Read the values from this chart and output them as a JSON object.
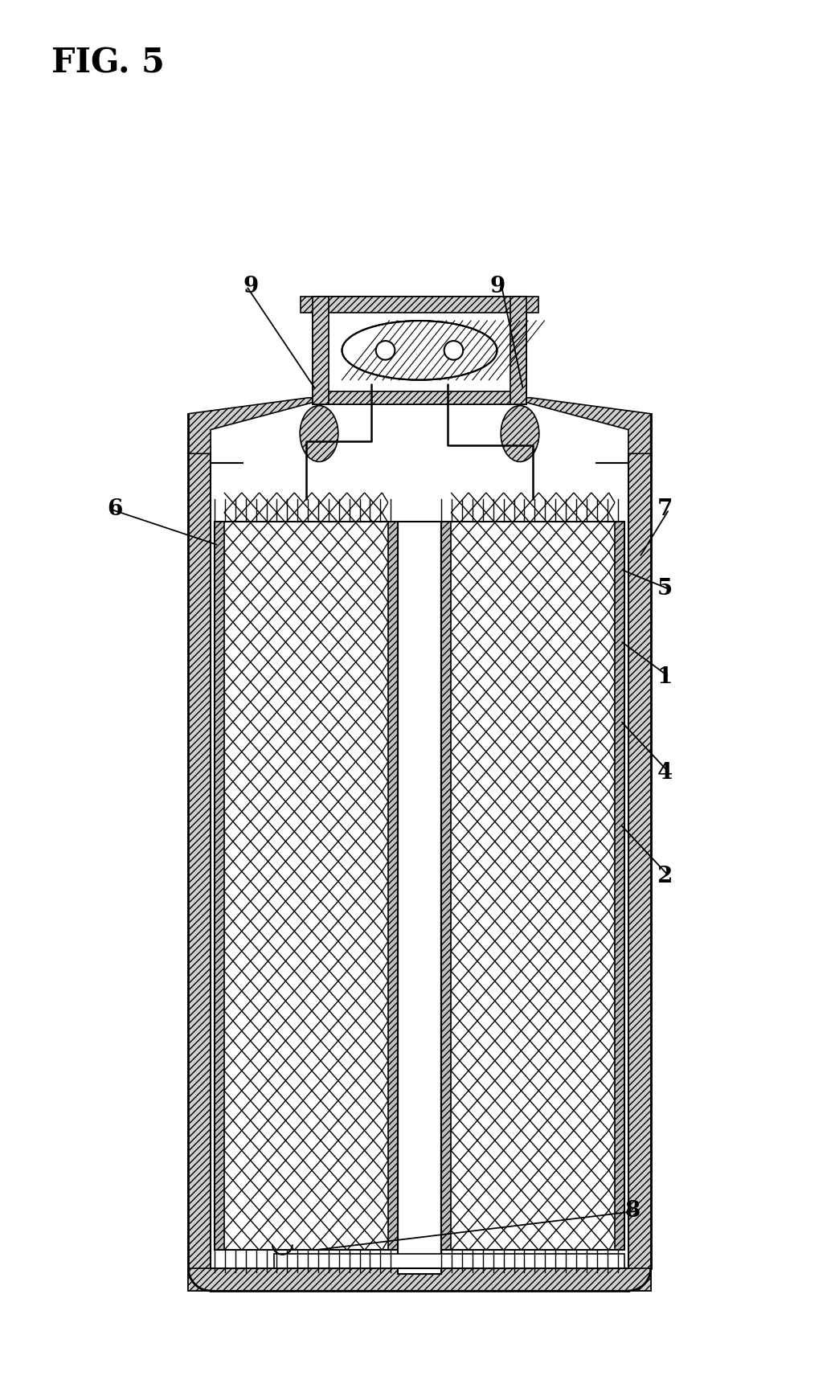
{
  "title": "FIG. 5",
  "bg_color": "#ffffff",
  "fig_width": 10.44,
  "fig_height": 17.12,
  "dpi": 100
}
